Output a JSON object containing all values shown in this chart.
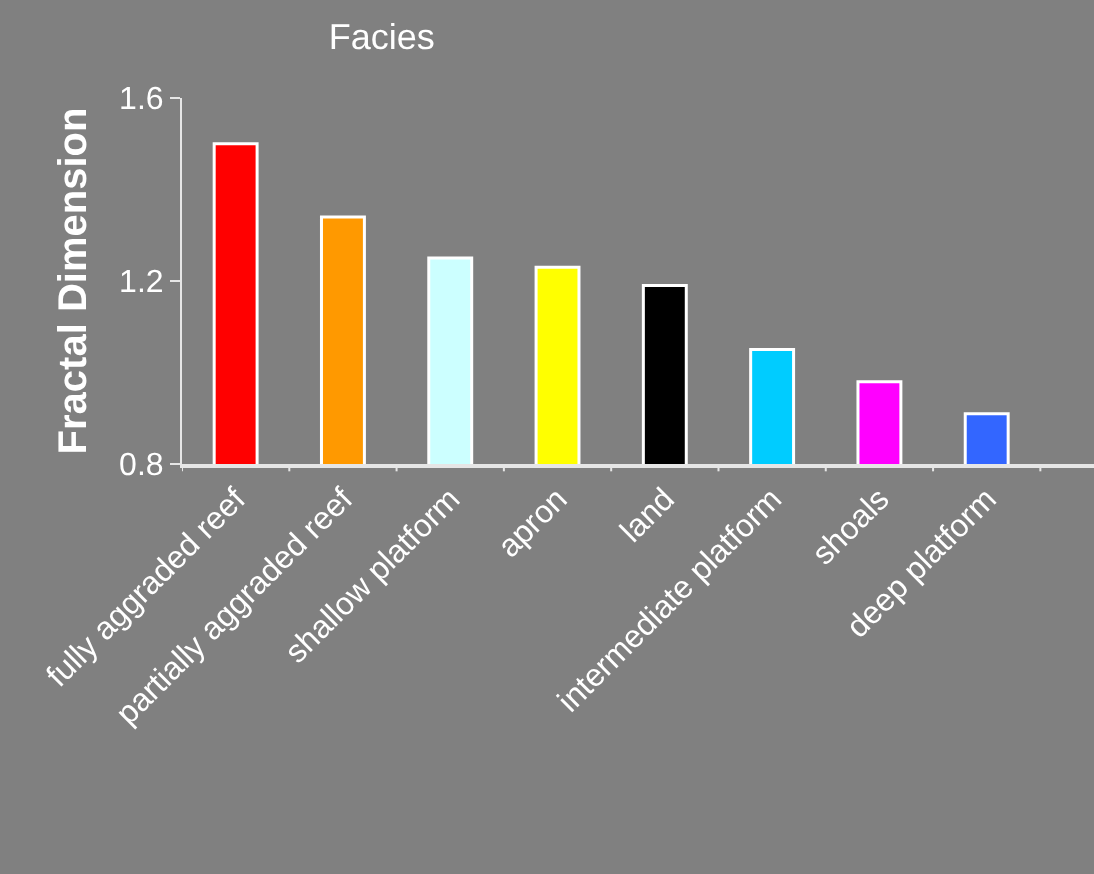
{
  "chart_data": {
    "type": "bar",
    "title": "Facies",
    "ylabel": "Fractal Dimension",
    "categories": [
      "fully aggraded reef",
      "partially aggraded reef",
      "shallow platform",
      "apron",
      "land",
      "intermediate platform",
      "shoals",
      "deep platform"
    ],
    "values": [
      1.5,
      1.34,
      1.25,
      1.23,
      1.19,
      1.05,
      0.98,
      0.91
    ],
    "colors": [
      "#ff0000",
      "#ff9900",
      "#ccffff",
      "#ffff00",
      "#000000",
      "#00ccff",
      "#ff00ff",
      "#3366ff"
    ],
    "ylim": [
      0.8,
      1.6
    ],
    "yticks": [
      0.8,
      1.2,
      1.6
    ],
    "grid": false,
    "legend": false
  }
}
